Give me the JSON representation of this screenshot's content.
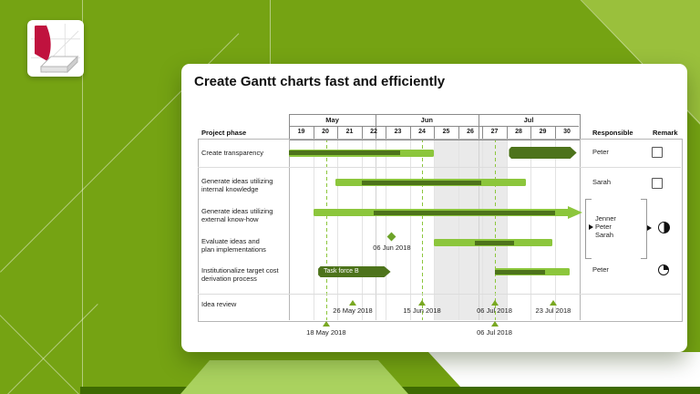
{
  "slide": {
    "title": "Create Gantt charts fast and efficiently"
  },
  "table_headers": {
    "project_phase": "Project phase",
    "responsible": "Responsible",
    "remark": "Remark"
  },
  "chart_data": {
    "type": "gantt",
    "timeline": {
      "months": [
        {
          "label": "May",
          "from_week": 19,
          "to_week": 22.57
        },
        {
          "label": "Jun",
          "from_week": 22.57,
          "to_week": 26.83
        },
        {
          "label": "Jul",
          "from_week": 26.83,
          "to_week": 31
        }
      ],
      "weeks": [
        "19",
        "20",
        "21",
        "22",
        "23",
        "24",
        "25",
        "26",
        "27",
        "28",
        "29",
        "30"
      ],
      "week_axis_start": 19,
      "week_axis_end": 31,
      "shaded_range": {
        "from_week": 25,
        "to_week": 28
      },
      "dashed_guides": [
        {
          "week": 20.53,
          "date": "18 May 2018"
        },
        {
          "week": 24.5,
          "date": "15 Jun 2018"
        },
        {
          "week": 27.5,
          "date": "06 Jul 2018"
        }
      ]
    },
    "rows": [
      {
        "phase": "Create transparency",
        "responsible": "Peter",
        "remark": "checkbox",
        "bars": [
          {
            "style": "progress",
            "from_week": 19,
            "to_week": 25,
            "done_from": 19,
            "done_to": 23.6
          },
          {
            "style": "solid-rounded",
            "from_week": 28.1,
            "to_week": 30.9
          }
        ]
      },
      {
        "phase": "Generate ideas utilizing\ninternal knowledge",
        "responsible": "Sarah",
        "remark": "checkbox",
        "bars": [
          {
            "style": "progress",
            "from_week": 20.9,
            "to_week": 28.8,
            "done_from": 22,
            "done_to": 26.95
          }
        ]
      },
      {
        "phase": "Generate ideas utilizing\nexternal know-how",
        "responsible_group": true,
        "bars": [
          {
            "style": "progress-arrow",
            "from_week": 20,
            "to_week": 30.6,
            "done_from": 22.5,
            "done_to": 30,
            "arrow_tip_week": 31.15
          }
        ]
      },
      {
        "phase": "Evaluate ideas and\nplan implementations",
        "responsible_group": true,
        "bars": [
          {
            "style": "progress",
            "from_week": 25,
            "to_week": 29.9,
            "done_from": 26.7,
            "done_to": 28.3
          }
        ],
        "milestones": [
          {
            "week": 23.25,
            "label": "06 Jun 2018"
          }
        ]
      },
      {
        "phase": "Institutionalize target cost\nderivation process",
        "responsible": "Peter",
        "remark": "pie-25",
        "bars": [
          {
            "style": "task-label",
            "from_week": 20.2,
            "to_week": 23.2,
            "label": "Task force B"
          },
          {
            "style": "progress",
            "from_week": 27.5,
            "to_week": 30.6,
            "done_from": 27.5,
            "done_to": 29.6
          }
        ]
      },
      {
        "phase": "Idea review",
        "markers": [
          {
            "week": 21.63,
            "label": "26 May 2018"
          },
          {
            "week": 24.5,
            "label": "15 Jun 2018"
          },
          {
            "week": 27.5,
            "label": "06 Jul 2018"
          },
          {
            "week": 29.93,
            "label": "23 Jul 2018"
          }
        ]
      }
    ],
    "responsible_group": {
      "names": [
        "Jenner",
        "Peter",
        "Sarah"
      ],
      "pointer_name": "Peter",
      "remark": "harvey-50"
    },
    "below_axis_markers": [
      {
        "week": 20.53,
        "label": "18 May 2018"
      },
      {
        "week": 27.5,
        "label": "06 Jul 2018"
      }
    ]
  },
  "icons": {
    "checkbox": "empty-square",
    "harvey_50": "half-filled-circle",
    "pie_25": "quarter-filled-circle",
    "pointer": "black-right-triangle",
    "milestone": "green-diamond",
    "date_marker": "green-up-triangle",
    "logo": "red-ribbon-and-gray-slab-on-grid"
  },
  "colors": {
    "background": "#75A313",
    "background_light_triangle": "#9AC03C",
    "background_chevron": "#AAD25F",
    "background_strip": "#3E6A02",
    "bar_light": "#8CC63C",
    "bar_dark": "#4D731B",
    "shaded_band": "#EAEAEA",
    "logo_red": "#C0123E"
  }
}
